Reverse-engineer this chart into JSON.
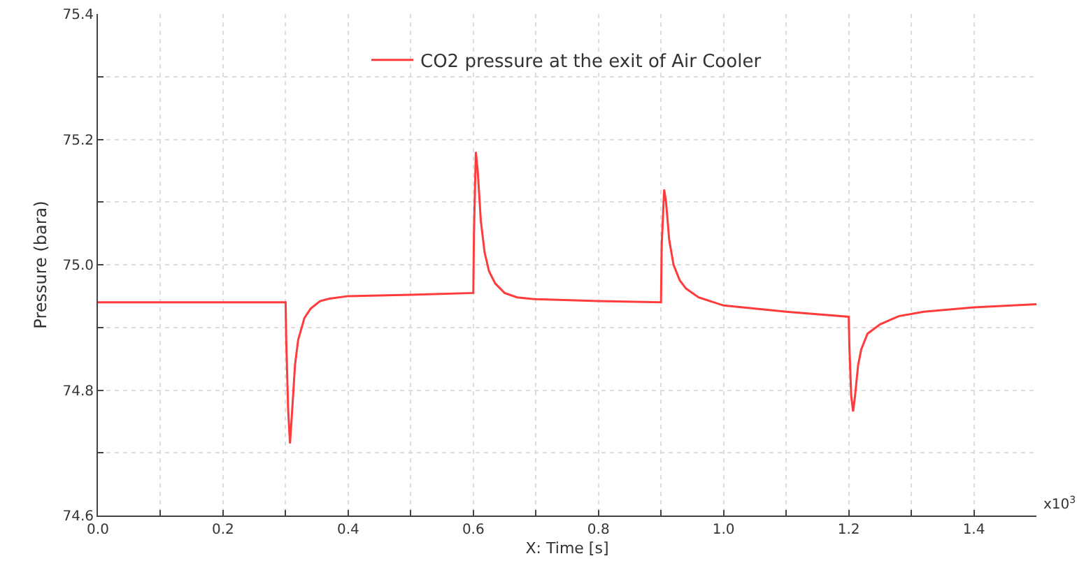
{
  "chart_data": {
    "type": "line",
    "xlabel": "X: Time [s]",
    "ylabel": "Pressure (bara)",
    "annotations": [
      "x10$^{3}$"
    ],
    "series": [
      {
        "name": "CO2 pressure at the exit of Air Cooler",
        "color": "#ff3b3b",
        "x": [
          0,
          0.1,
          0.2,
          0.3,
          0.301,
          0.304,
          0.307,
          0.31,
          0.315,
          0.32,
          0.33,
          0.34,
          0.355,
          0.37,
          0.4,
          0.5,
          0.6,
          0.601,
          0.604,
          0.607,
          0.612,
          0.618,
          0.625,
          0.635,
          0.65,
          0.67,
          0.7,
          0.8,
          0.9,
          0.901,
          0.905,
          0.908,
          0.913,
          0.92,
          0.93,
          0.94,
          0.96,
          1.0,
          1.1,
          1.2,
          1.201,
          1.204,
          1.207,
          1.21,
          1.215,
          1.22,
          1.23,
          1.25,
          1.28,
          1.32,
          1.4,
          1.5
        ],
        "values": [
          74.94,
          74.94,
          74.94,
          74.94,
          74.88,
          74.77,
          74.715,
          74.76,
          74.84,
          74.88,
          74.915,
          74.93,
          74.942,
          74.946,
          74.95,
          74.952,
          74.955,
          75.05,
          75.18,
          75.15,
          75.07,
          75.02,
          74.99,
          74.97,
          74.955,
          74.948,
          74.945,
          74.942,
          74.94,
          75.03,
          75.12,
          75.1,
          75.04,
          75.0,
          74.975,
          74.962,
          74.948,
          74.935,
          74.925,
          74.917,
          74.87,
          74.79,
          74.766,
          74.79,
          74.84,
          74.865,
          74.89,
          74.905,
          74.918,
          74.925,
          74.932,
          74.937
        ]
      }
    ],
    "xlim": [
      0,
      1.5
    ],
    "ylim": [
      74.6,
      75.4
    ],
    "xticks": [
      {
        "value": 0,
        "label": "0.0"
      },
      {
        "value": 0.1,
        "label": null
      },
      {
        "value": 0.2,
        "label": "0.2"
      },
      {
        "value": 0.3,
        "label": null
      },
      {
        "value": 0.4,
        "label": "0.4"
      },
      {
        "value": 0.5,
        "label": null
      },
      {
        "value": 0.6,
        "label": "0.6"
      },
      {
        "value": 0.7,
        "label": null
      },
      {
        "value": 0.8,
        "label": "0.8"
      },
      {
        "value": 0.9,
        "label": null
      },
      {
        "value": 1,
        "label": "1.0"
      },
      {
        "value": 1.1,
        "label": null
      },
      {
        "value": 1.2,
        "label": "1.2"
      },
      {
        "value": 1.3,
        "label": null
      },
      {
        "value": 1.4,
        "label": "1.4"
      }
    ],
    "yticks": [
      74.6,
      {
        "value": 74.7,
        "label": null
      },
      74.8,
      {
        "value": 74.9,
        "label": null
      },
      {
        "value": 75,
        "label": "75.0"
      },
      {
        "value": 75.1,
        "label": null
      },
      75.2,
      {
        "value": 75.3,
        "label": null
      },
      75.4
    ],
    "grid": true,
    "legend": "top",
    "marker": "none",
    "line_style": "solid"
  }
}
